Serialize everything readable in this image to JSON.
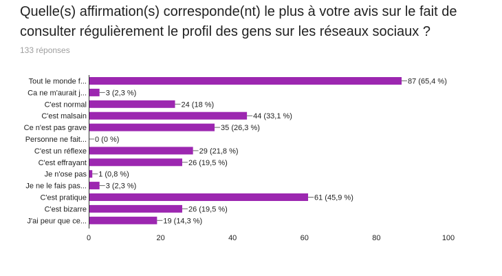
{
  "header": {
    "title": "Quelle(s) affirmation(s) corresponde(nt) le plus à votre avis sur le fait de consulter régulièrement le profil des gens sur les réseaux sociaux ?",
    "responses": "133 réponses"
  },
  "colors": {
    "bar": "#9c27b0",
    "axis": "#333333",
    "grid": "#cccccc",
    "text": "#212121"
  },
  "chart_data": {
    "type": "bar",
    "orientation": "horizontal",
    "categories": [
      "Tout le monde f...",
      "Ca ne m'aurait j...",
      "C'est normal",
      "C'est malsain",
      "Ce n'est pas grave",
      "Personne ne fait...",
      "C'est un réflexe",
      "C'est effrayant",
      "Je n'ose pas",
      "Je ne le fais pas...",
      "C'est pratique",
      "C'est bizarre",
      "J'ai peur que ce..."
    ],
    "values": [
      87,
      3,
      24,
      44,
      35,
      0,
      29,
      26,
      1,
      3,
      61,
      26,
      19
    ],
    "data_labels": [
      "87 (65,4 %)",
      "3 (2,3 %)",
      "24 (18 %)",
      "44 (33,1 %)",
      "35 (26,3 %)",
      "0 (0 %)",
      "29 (21,8 %)",
      "26 (19,5 %)",
      "1 (0,8 %)",
      "3 (2,3 %)",
      "61 (45,9 %)",
      "26 (19,5 %)",
      "19 (14,3 %)"
    ],
    "xlim": [
      0,
      100
    ],
    "xticks": [
      "0",
      "20",
      "40",
      "60",
      "80",
      "100"
    ],
    "grid": false,
    "legend": "none"
  }
}
